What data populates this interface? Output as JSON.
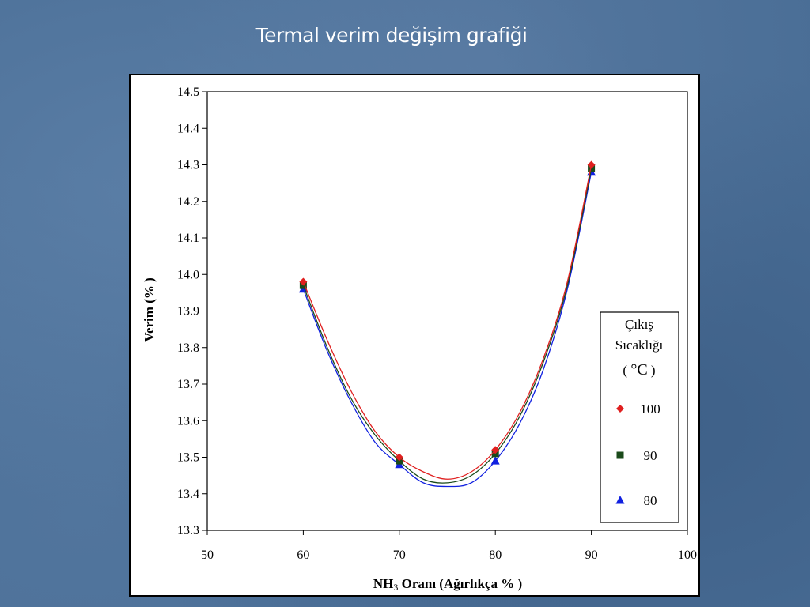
{
  "slide": {
    "title": "Termal verim değişim grafiği"
  },
  "chart_data": {
    "type": "line",
    "title": "",
    "xlabel": "NH3 Oranı (Ağırlıkça % )",
    "xlabel_parts": {
      "pre": "NH",
      "sub": "3",
      "post": " Oranı (Ağırlıkça % )"
    },
    "ylabel": "Verim (% )",
    "xlim": [
      50,
      100
    ],
    "ylim": [
      13.3,
      14.5
    ],
    "x_ticks": [
      50,
      60,
      70,
      80,
      90,
      100
    ],
    "x_tick_labels": [
      "50",
      "60",
      "70",
      "80",
      "90",
      "100"
    ],
    "y_ticks": [
      13.3,
      13.4,
      13.5,
      13.6,
      13.7,
      13.8,
      13.9,
      14.0,
      14.1,
      14.2,
      14.3,
      14.4,
      14.5
    ],
    "y_tick_labels": [
      "13.3",
      "13.4",
      "13.5",
      "13.6",
      "13.7",
      "13.8",
      "13.9",
      "14.0",
      "14.1",
      "14.2",
      "14.3",
      "14.4",
      "14.5"
    ],
    "grid": false,
    "legend": {
      "placement": "right",
      "title_lines": [
        "Çıkış",
        "Sıcaklığı",
        "( °C )"
      ],
      "title_parts": {
        "open": "( ",
        "unit": "°C",
        "close": " )"
      }
    },
    "series": [
      {
        "name": "100",
        "color": "#e02020",
        "marker": "diamond",
        "points": [
          [
            60,
            13.98
          ],
          [
            70,
            13.5
          ],
          [
            80,
            13.52
          ],
          [
            90,
            14.3
          ]
        ],
        "curve": [
          [
            60,
            13.98
          ],
          [
            62.5,
            13.82
          ],
          [
            65,
            13.68
          ],
          [
            67.5,
            13.57
          ],
          [
            70,
            13.5
          ],
          [
            72.5,
            13.46
          ],
          [
            75,
            13.44
          ],
          [
            77.5,
            13.46
          ],
          [
            80,
            13.52
          ],
          [
            82.5,
            13.62
          ],
          [
            85,
            13.77
          ],
          [
            87.5,
            13.98
          ],
          [
            90,
            14.3
          ]
        ]
      },
      {
        "name": "90",
        "color": "#1a4a1a",
        "marker": "square",
        "points": [
          [
            60,
            13.97
          ],
          [
            70,
            13.49
          ],
          [
            80,
            13.51
          ],
          [
            90,
            14.29
          ]
        ],
        "curve": [
          [
            60,
            13.97
          ],
          [
            62.5,
            13.8
          ],
          [
            65,
            13.66
          ],
          [
            67.5,
            13.56
          ],
          [
            70,
            13.49
          ],
          [
            72.5,
            13.44
          ],
          [
            75,
            13.43
          ],
          [
            77.5,
            13.45
          ],
          [
            80,
            13.51
          ],
          [
            82.5,
            13.61
          ],
          [
            85,
            13.76
          ],
          [
            87.5,
            13.97
          ],
          [
            90,
            14.29
          ]
        ]
      },
      {
        "name": "80",
        "color": "#1020e0",
        "marker": "triangle",
        "points": [
          [
            60,
            13.96
          ],
          [
            70,
            13.48
          ],
          [
            80,
            13.49
          ],
          [
            90,
            14.28
          ]
        ],
        "curve": [
          [
            60,
            13.96
          ],
          [
            62.5,
            13.79
          ],
          [
            65,
            13.65
          ],
          [
            67.5,
            13.54
          ],
          [
            70,
            13.48
          ],
          [
            72.5,
            13.43
          ],
          [
            75,
            13.42
          ],
          [
            77.5,
            13.43
          ],
          [
            80,
            13.49
          ],
          [
            82.5,
            13.59
          ],
          [
            85,
            13.74
          ],
          [
            87.5,
            13.96
          ],
          [
            90,
            14.28
          ]
        ]
      }
    ]
  }
}
